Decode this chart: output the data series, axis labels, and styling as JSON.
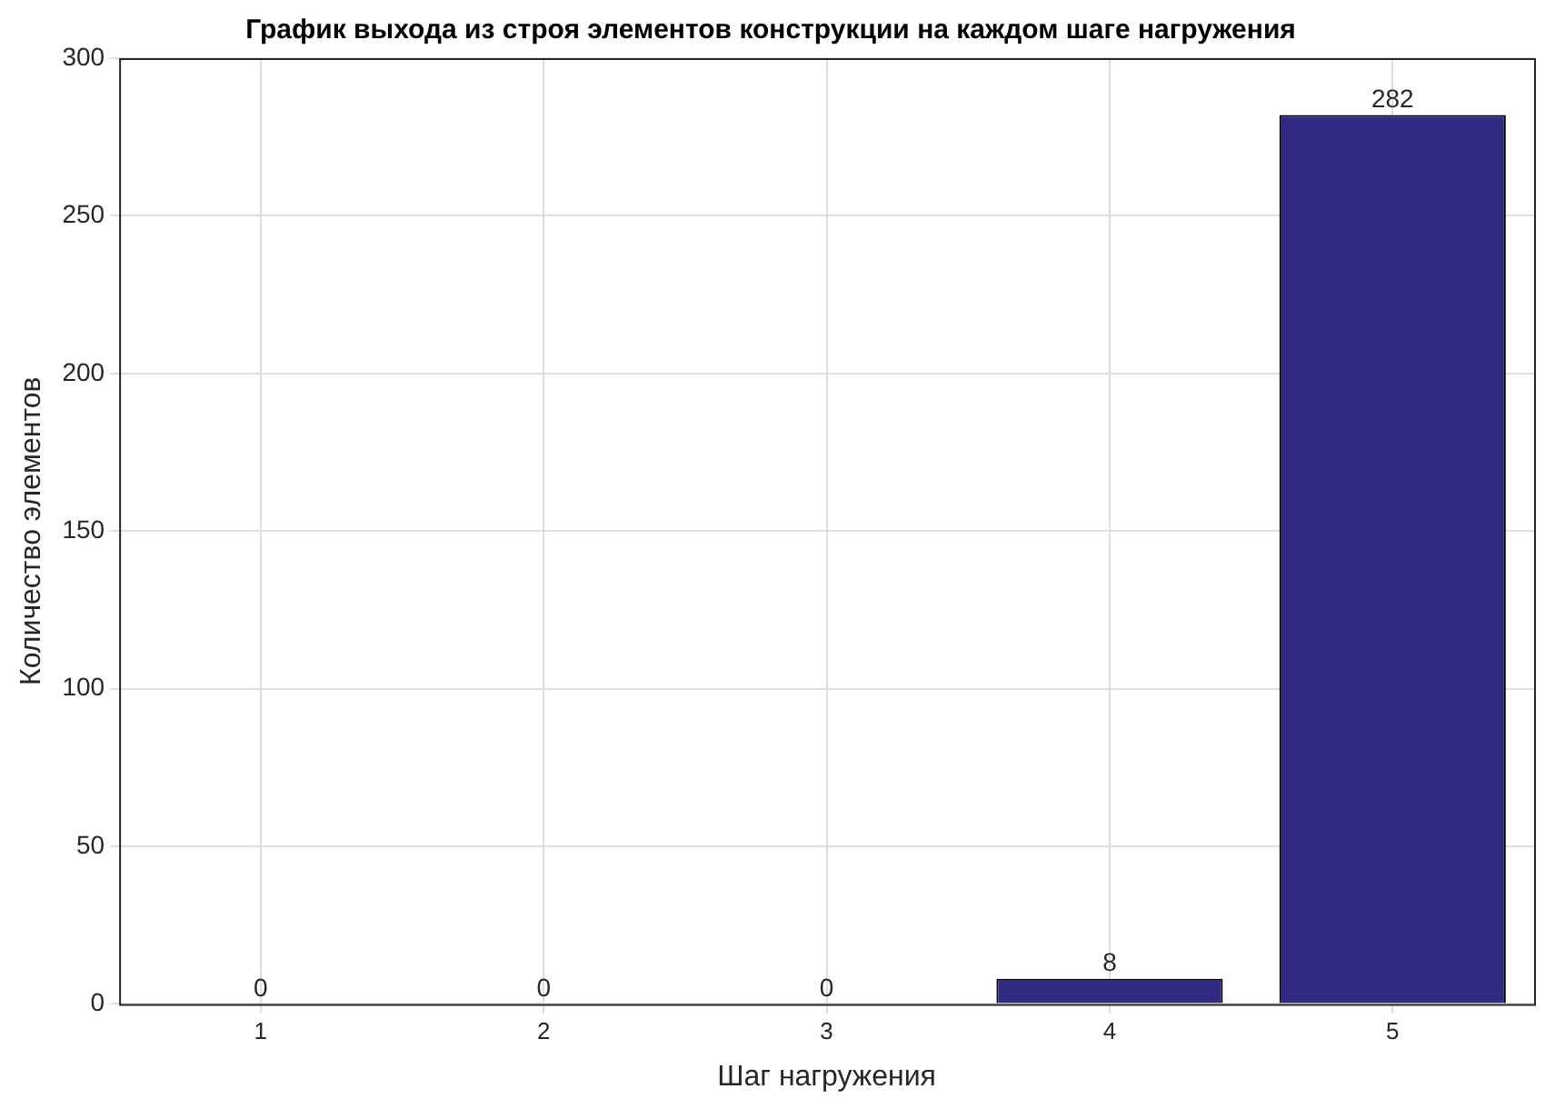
{
  "chart_data": {
    "type": "bar",
    "title": "График выхода из строя элементов конструкции на каждом шаге нагружения",
    "xlabel": "Шаг нагружения",
    "ylabel": "Количество элементов",
    "categories": [
      "1",
      "2",
      "3",
      "4",
      "5"
    ],
    "values": [
      0,
      0,
      0,
      8,
      282
    ],
    "color": "#312a82",
    "ylim": [
      0,
      300
    ],
    "yticks": [
      0,
      50,
      100,
      150,
      200,
      250,
      300
    ],
    "grid": true,
    "data_labels": true
  }
}
